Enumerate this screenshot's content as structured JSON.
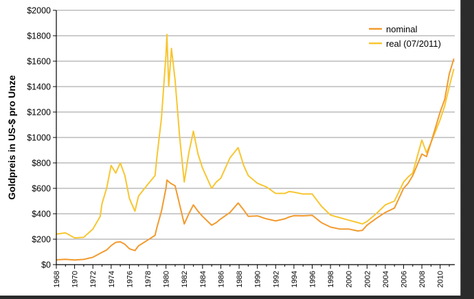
{
  "chart_data": {
    "type": "line",
    "title": "",
    "xlabel": "",
    "ylabel": "Goldpreis in US-$ pro Unze",
    "xlim": [
      1968,
      2011.6
    ],
    "ylim": [
      0,
      2000
    ],
    "x_ticks": [
      "1968",
      "1970",
      "1972",
      "1974",
      "1976",
      "1978",
      "1980",
      "1982",
      "1984",
      "1986",
      "1988",
      "1990",
      "1992",
      "1994",
      "1996",
      "1998",
      "2000",
      "2002",
      "2004",
      "2006",
      "2008",
      "2010"
    ],
    "y_ticks": [
      "$0",
      "$200",
      "$400",
      "$600",
      "$800",
      "$1000",
      "$1200",
      "$1400",
      "$1600",
      "$1800",
      "$2000"
    ],
    "grid": "horizontal",
    "legend": "top-right",
    "colors": {
      "nominal": "#f29a2e",
      "real": "#f7c631",
      "grid": "#9a9a9a",
      "axis": "#000000"
    },
    "series": [
      {
        "name": "nominal",
        "x": [
          1968,
          1969,
          1970,
          1971,
          1972,
          1973,
          1973.5,
          1974,
          1974.5,
          1975,
          1975.5,
          1976,
          1976.6,
          1977,
          1978,
          1978.8,
          1979,
          1979.5,
          1980,
          1980.1,
          1980.5,
          1981,
          1981.5,
          1982,
          1982.5,
          1983,
          1983.5,
          1984,
          1985,
          1985.5,
          1986,
          1987,
          1987.9,
          1988.5,
          1989,
          1990,
          1991,
          1992,
          1993,
          1993.5,
          1994,
          1995,
          1996,
          1997,
          1998,
          1999,
          2000,
          2001,
          2001.5,
          2002,
          2003,
          2004,
          2005,
          2006,
          2006.5,
          2007,
          2008,
          2008.5,
          2009,
          2010,
          2010.5,
          2011,
          2011.5
        ],
        "y": [
          38,
          42,
          36,
          41,
          58,
          97,
          115,
          150,
          175,
          180,
          160,
          125,
          110,
          148,
          193,
          230,
          290,
          420,
          600,
          665,
          640,
          620,
          470,
          320,
          400,
          470,
          420,
          380,
          310,
          330,
          360,
          410,
          485,
          430,
          380,
          383,
          360,
          344,
          360,
          375,
          385,
          384,
          388,
          330,
          295,
          280,
          280,
          265,
          270,
          310,
          363,
          410,
          445,
          600,
          640,
          700,
          870,
          850,
          960,
          1200,
          1300,
          1500,
          1620
        ]
      },
      {
        "name": "real (07/2011)",
        "x": [
          1968,
          1969,
          1970,
          1971,
          1972,
          1972.8,
          1973,
          1973.5,
          1974,
          1974.5,
          1975,
          1975.5,
          1976,
          1976.6,
          1977,
          1978,
          1978.8,
          1979,
          1979.5,
          1980,
          1980.1,
          1980.3,
          1980.6,
          1981,
          1981.5,
          1982,
          1982.5,
          1983,
          1983.5,
          1984,
          1985,
          1985.5,
          1986,
          1987,
          1987.9,
          1988.5,
          1989,
          1990,
          1991,
          1992,
          1993,
          1993.5,
          1994,
          1995,
          1996,
          1997,
          1998,
          1999,
          2000,
          2001,
          2001.5,
          2002,
          2003,
          2004,
          2005,
          2006,
          2006.5,
          2007,
          2008,
          2008.5,
          2009,
          2010,
          2010.5,
          2011,
          2011.5
        ],
        "y": [
          240,
          250,
          210,
          215,
          280,
          380,
          480,
          600,
          780,
          720,
          800,
          700,
          520,
          420,
          540,
          630,
          700,
          840,
          1150,
          1650,
          1810,
          1400,
          1700,
          1450,
          1000,
          650,
          880,
          1050,
          870,
          760,
          600,
          650,
          680,
          840,
          920,
          780,
          700,
          640,
          610,
          560,
          560,
          575,
          570,
          555,
          555,
          460,
          390,
          370,
          350,
          330,
          320,
          340,
          400,
          470,
          500,
          650,
          690,
          720,
          980,
          880,
          960,
          1140,
          1250,
          1400,
          1540
        ]
      }
    ]
  }
}
